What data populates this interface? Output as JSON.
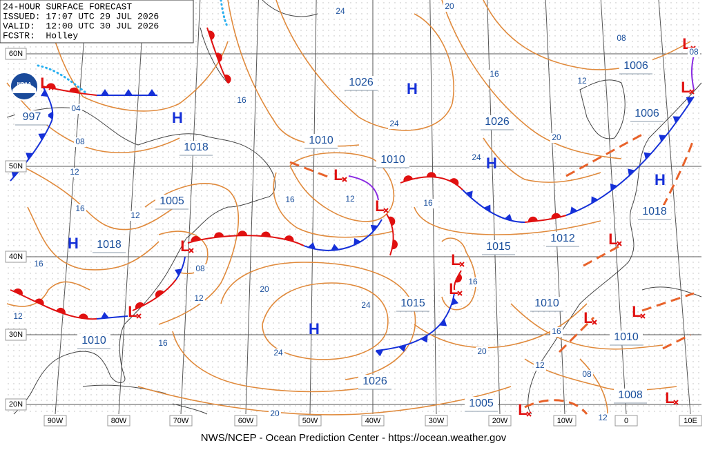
{
  "header": {
    "title": "24-HOUR SURFACE FORECAST",
    "issued": "ISSUED: 17:07 UTC 29 JUL 2026",
    "valid": "VALID:  12:00 UTC 30 JUL 2026",
    "forecaster": "FCSTR:  Holley",
    "logo": "NOAA"
  },
  "footer": "NWS/NCEP - Ocean Prediction Center - https://ocean.weather.gov",
  "latitude_labels": [
    "60N",
    "50N",
    "40N",
    "30N",
    "20N"
  ],
  "longitude_labels": [
    "90W",
    "80W",
    "70W",
    "60W",
    "50W",
    "40W",
    "30W",
    "20W",
    "10W",
    "0",
    "10E"
  ],
  "highs": [
    "H",
    "H",
    "H",
    "H",
    "H",
    "H"
  ],
  "lows": [
    "L",
    "L",
    "L",
    "L",
    "L",
    "L",
    "L",
    "L",
    "L",
    "L",
    "L",
    "L",
    "L",
    "L"
  ],
  "pressure_labels": [
    "997",
    "1026",
    "1026",
    "1018",
    "1010",
    "1010",
    "1005",
    "1018",
    "1015",
    "1012",
    "1006",
    "1006",
    "1018",
    "1015",
    "1010",
    "1010",
    "1010",
    "1026",
    "1005",
    "1008"
  ],
  "isobar_labels": [
    "24",
    "20",
    "08",
    "16",
    "12",
    "24",
    "20",
    "24",
    "16",
    "04",
    "08",
    "12",
    "16",
    "12",
    "16",
    "12",
    "16",
    "08",
    "12",
    "16",
    "20",
    "24",
    "16",
    "12",
    "16",
    "24",
    "20",
    "16",
    "12",
    "08",
    "12",
    "20",
    "08"
  ]
}
